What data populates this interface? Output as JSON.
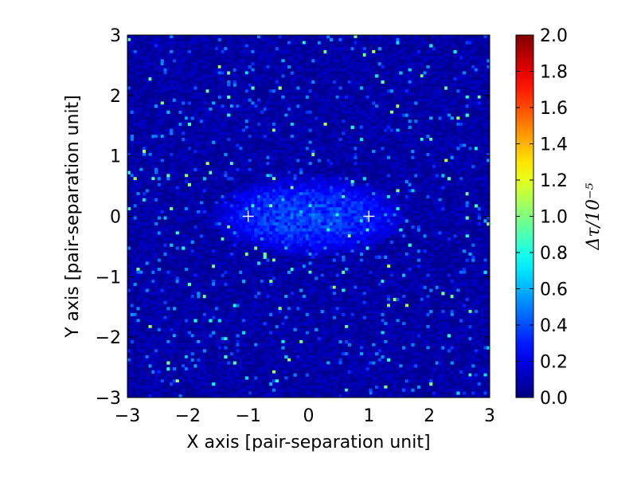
{
  "chart_data": {
    "type": "heatmap",
    "title": "",
    "xlabel": "X axis [pair-separation unit]",
    "ylabel": "Y axis [pair-separation unit]",
    "xlim": [
      -3,
      3
    ],
    "ylim": [
      -3,
      3
    ],
    "x_ticks": [
      "−3",
      "−2",
      "−1",
      "0",
      "1",
      "2",
      "3"
    ],
    "y_ticks": [
      "−3",
      "−2",
      "−1",
      "0",
      "1",
      "2",
      "3"
    ],
    "colorbar": {
      "label": "Δτ/10⁻⁵",
      "range": [
        0.0,
        2.0
      ],
      "ticks": [
        "0.0",
        "0.2",
        "0.4",
        "0.6",
        "0.8",
        "1.0",
        "1.2",
        "1.4",
        "1.6",
        "1.8",
        "2.0"
      ],
      "colormap": "jet",
      "colors": [
        "#00007f",
        "#0000ff",
        "#007fff",
        "#00ffff",
        "#7fff7f",
        "#ffff00",
        "#ff7f00",
        "#ff0000",
        "#7f0000"
      ]
    },
    "grid": false,
    "description_values": {
      "background_level": 0.05,
      "central_feature": {
        "x_range": [
          -1.3,
          1.4
        ],
        "y_range": [
          -0.6,
          0.5
        ],
        "level": 0.4
      },
      "point_markers_x": [
        -1.0,
        1.0
      ],
      "point_markers_y": [
        0.0,
        0.0
      ]
    }
  }
}
